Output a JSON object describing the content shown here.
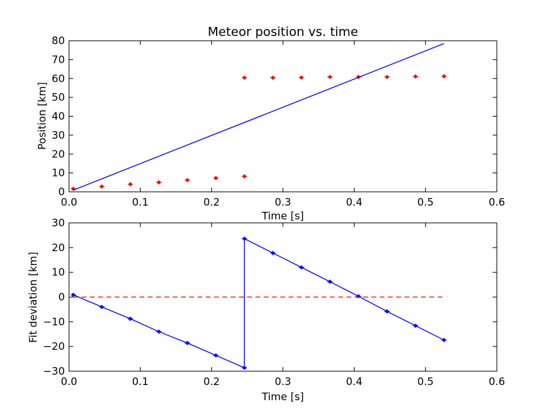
{
  "chart_data": [
    {
      "type": "scatter",
      "title": "Meteor position vs. time",
      "xlabel": "Time [s]",
      "ylabel": "Position [km]",
      "xlim": [
        0.0,
        0.6
      ],
      "ylim": [
        0,
        80
      ],
      "xticks": [
        "0.0",
        "0.1",
        "0.2",
        "0.3",
        "0.4",
        "0.5",
        "0.6"
      ],
      "yticks": [
        "0",
        "10",
        "20",
        "30",
        "40",
        "50",
        "60",
        "70",
        "80"
      ],
      "series": [
        {
          "kind": "scatter-errorbar",
          "color": "#ff0000",
          "x": [
            0.006,
            0.046,
            0.086,
            0.126,
            0.166,
            0.206,
            0.246,
            0.246,
            0.286,
            0.326,
            0.366,
            0.406,
            0.446,
            0.486,
            0.526
          ],
          "y": [
            1.6,
            2.8,
            4.0,
            5.0,
            6.2,
            7.3,
            8.2,
            60.4,
            60.4,
            60.5,
            60.8,
            60.8,
            60.8,
            61.1,
            61.2
          ]
        },
        {
          "kind": "line",
          "color": "#0000ff",
          "x": [
            0.006,
            0.526
          ],
          "y": [
            0.9,
            78.5
          ]
        }
      ]
    },
    {
      "type": "line",
      "title": "",
      "xlabel": "Time [s]",
      "ylabel": "Fit deviation [km]",
      "xlim": [
        0.0,
        0.6
      ],
      "ylim": [
        -30,
        30
      ],
      "xticks": [
        "0.0",
        "0.1",
        "0.2",
        "0.3",
        "0.4",
        "0.5",
        "0.6"
      ],
      "yticks": [
        "−30",
        "−20",
        "−10",
        "0",
        "10",
        "20",
        "30"
      ],
      "series": [
        {
          "kind": "line-markers",
          "color": "#0000ff",
          "x": [
            0.006,
            0.046,
            0.086,
            0.126,
            0.166,
            0.206,
            0.246,
            0.246,
            0.286,
            0.326,
            0.366,
            0.406,
            0.446,
            0.486,
            0.526
          ],
          "y": [
            0.9,
            -4.0,
            -8.8,
            -14.0,
            -18.6,
            -23.6,
            -28.6,
            23.6,
            17.8,
            12.0,
            6.2,
            0.3,
            -5.8,
            -11.6,
            -17.4
          ]
        },
        {
          "kind": "dashed-line",
          "color": "#ff0000",
          "x": [
            0.006,
            0.526
          ],
          "y": [
            0,
            0
          ]
        }
      ]
    }
  ]
}
